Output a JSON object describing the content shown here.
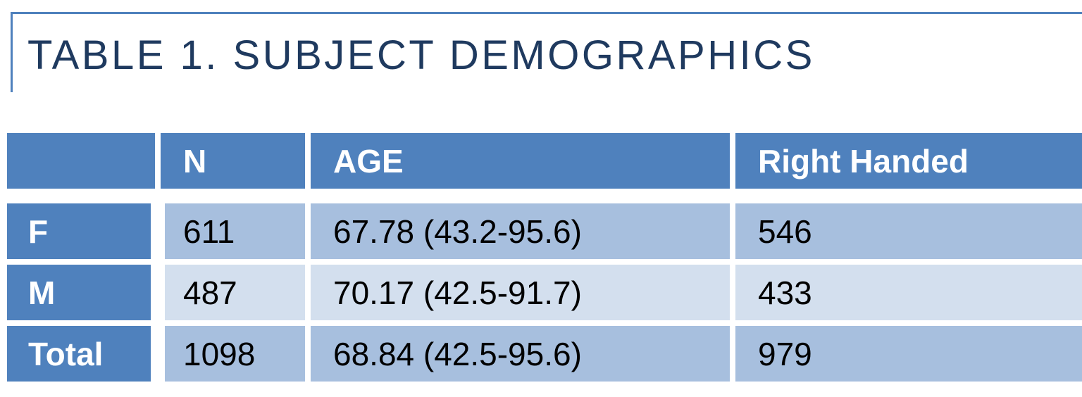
{
  "title": "TABLE 1. SUBJECT DEMOGRAPHICS",
  "table": {
    "columns": [
      "",
      "N",
      "AGE",
      "Right Handed"
    ],
    "rows": [
      {
        "label": "F",
        "n": "611",
        "age": "67.78 (43.2-95.6)",
        "right_handed": "546"
      },
      {
        "label": "M",
        "n": "487",
        "age": "70.17 (42.5-91.7)",
        "right_handed": "433"
      },
      {
        "label": "Total",
        "n": "1098",
        "age": "68.84 (42.5-95.6)",
        "right_handed": "979"
      }
    ]
  },
  "colors": {
    "accent": "#4f81bd",
    "band_dark": "#a7bfde",
    "band_light": "#d3dfee",
    "title_text": "#1f3a5f"
  }
}
